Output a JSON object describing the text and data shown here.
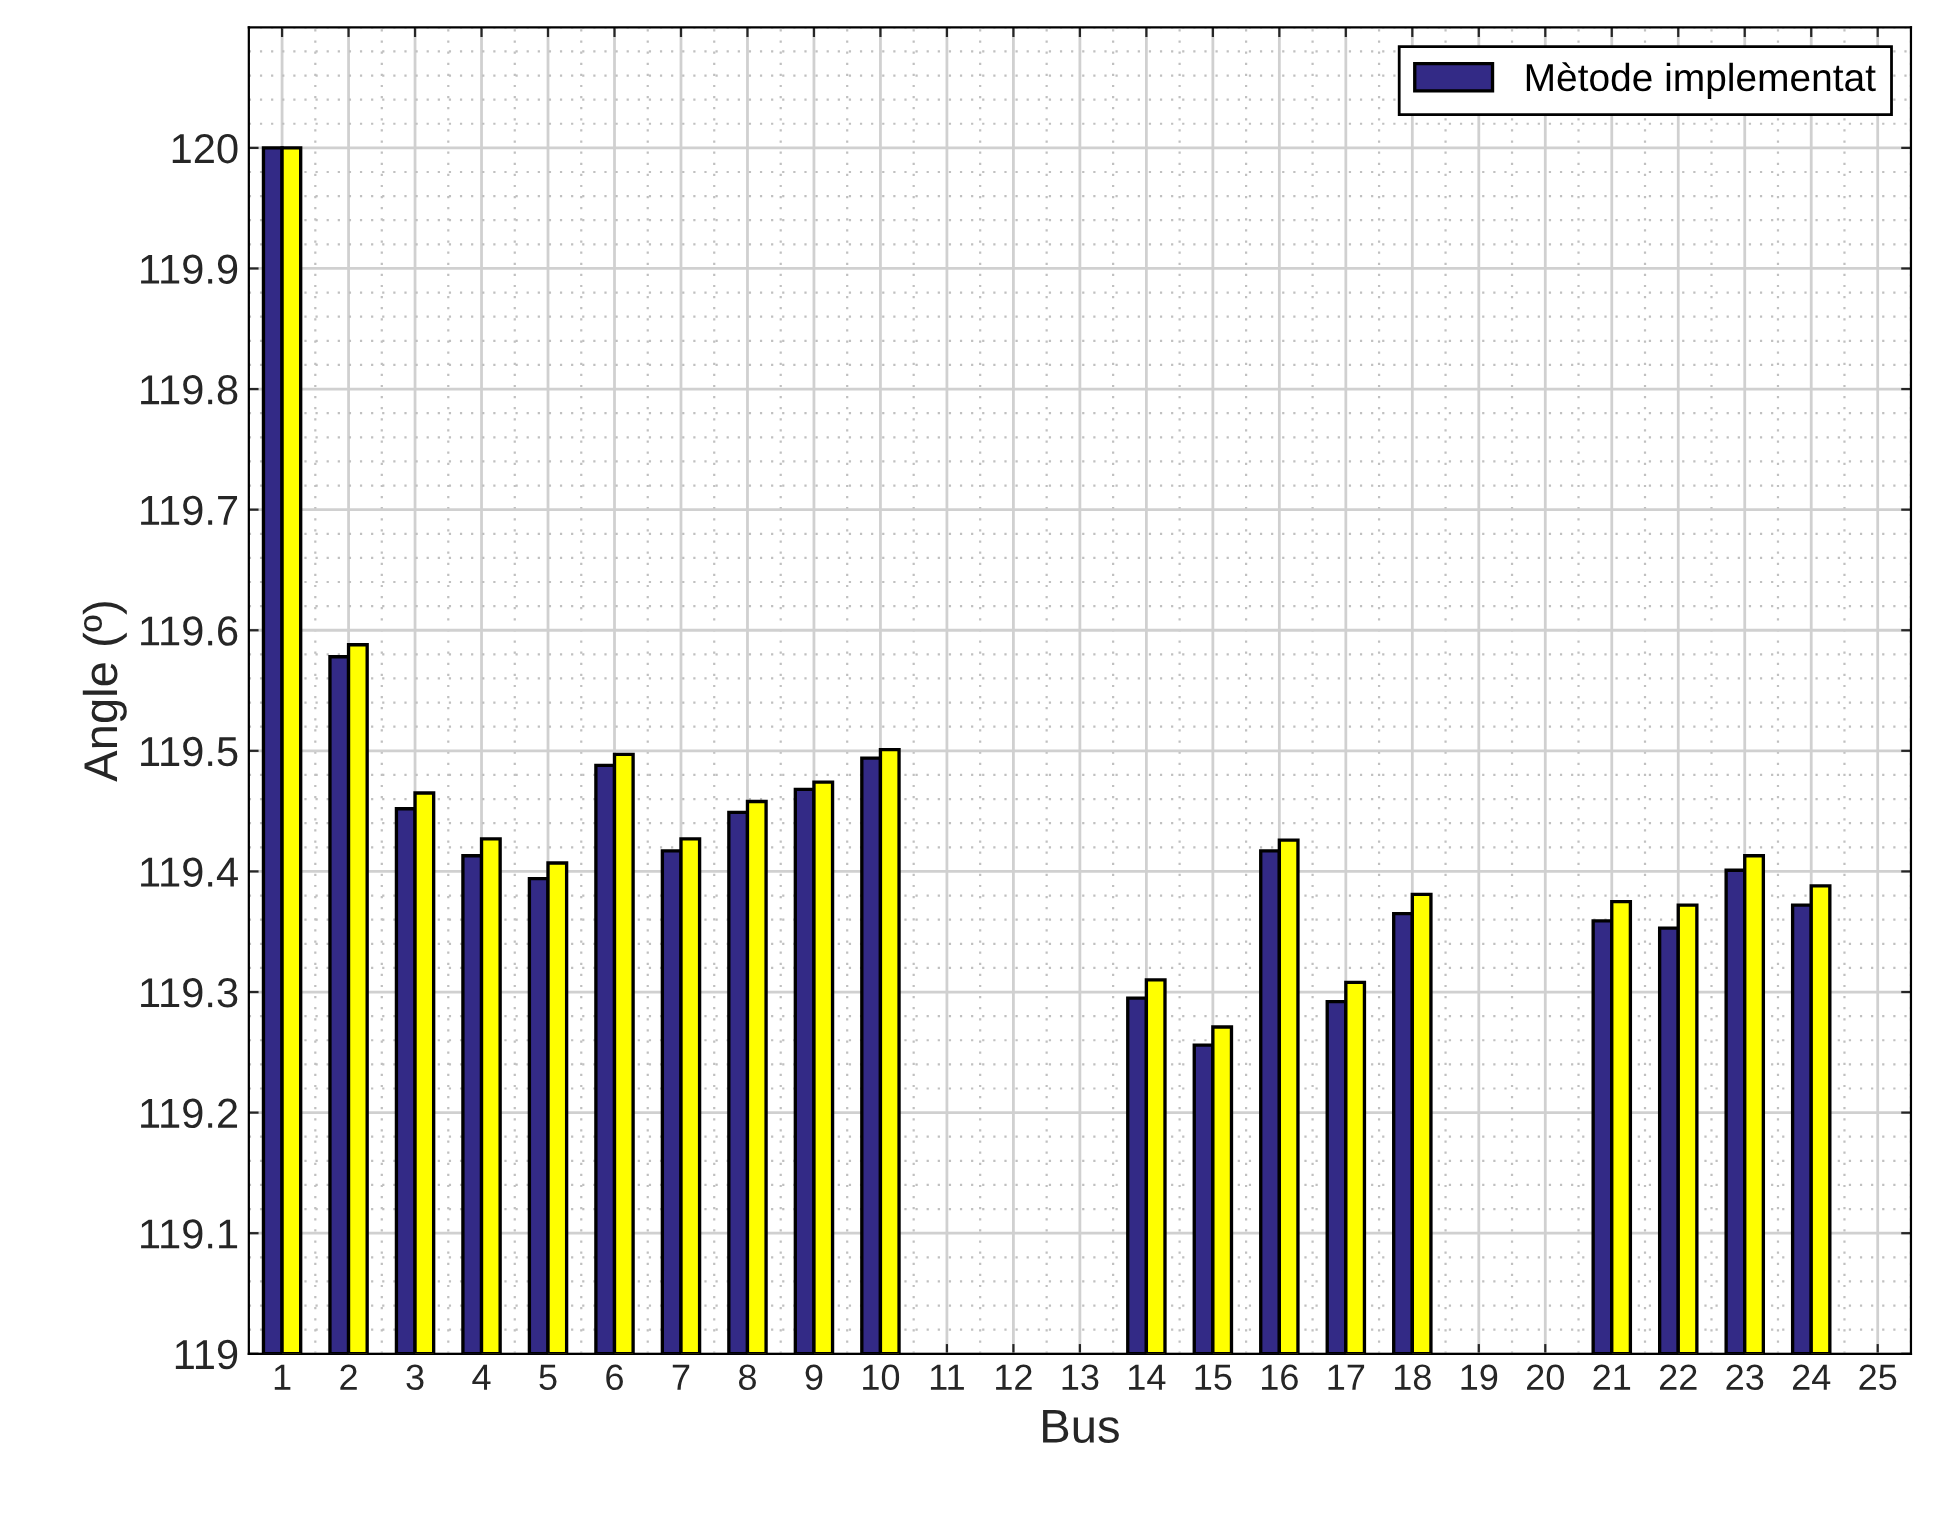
{
  "chart_data": {
    "type": "bar",
    "xlabel": "Bus",
    "ylabel": "Angle (º)",
    "categories": [
      "1",
      "2",
      "3",
      "4",
      "5",
      "6",
      "7",
      "8",
      "9",
      "10",
      "11",
      "12",
      "13",
      "14",
      "15",
      "16",
      "17",
      "18",
      "19",
      "20",
      "21",
      "22",
      "23",
      "24",
      "25"
    ],
    "series": [
      {
        "name": "Mètode implementat",
        "color": "#332a86",
        "values": [
          120.0,
          119.578,
          119.452,
          119.413,
          119.394,
          119.488,
          119.417,
          119.449,
          119.468,
          119.494,
          null,
          null,
          null,
          119.295,
          119.256,
          119.417,
          119.292,
          119.365,
          null,
          null,
          119.359,
          119.353,
          119.401,
          119.372,
          null
        ]
      },
      {
        "color": "#ffff00",
        "values": [
          120.0,
          119.588,
          119.465,
          119.427,
          119.407,
          119.497,
          119.427,
          119.458,
          119.474,
          119.501,
          null,
          null,
          null,
          119.31,
          119.271,
          119.426,
          119.308,
          119.381,
          null,
          null,
          119.375,
          119.372,
          119.413,
          119.388,
          null
        ]
      }
    ],
    "ylim": [
      119,
      120.1
    ],
    "yticks": [
      119,
      119.1,
      119.2,
      119.3,
      119.4,
      119.5,
      119.6,
      119.7,
      119.8,
      119.9,
      120
    ],
    "grid": true,
    "legend": "top right"
  }
}
